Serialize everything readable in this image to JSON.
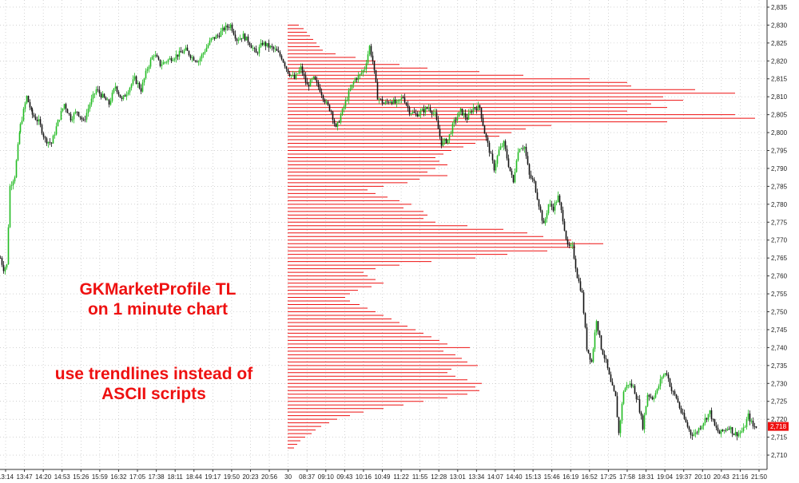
{
  "annotations": {
    "line1": "GKMarketProfile TL",
    "line2": "on 1 minute chart",
    "line3": "use trendlines instead of",
    "line4": "ASCII scripts"
  },
  "colors": {
    "profile": "#ee1111",
    "up_candle": "#22bb22",
    "down_candle": "#111111",
    "grid": "#b8b8b8",
    "price_badge": "#ee1111"
  },
  "chart_data": {
    "type": "candlestick",
    "last_price": 2718,
    "last_price_label": "2,718",
    "ylim": [
      2706,
      2837
    ],
    "y_ticks": [
      "2,710",
      "2,715",
      "2,720",
      "2,725",
      "2,730",
      "2,735",
      "2,740",
      "2,745",
      "2,750",
      "2,755",
      "2,760",
      "2,765",
      "2,770",
      "2,775",
      "2,780",
      "2,785",
      "2,790",
      "2,795",
      "2,800",
      "2,805",
      "2,810",
      "2,815",
      "2,820",
      "2,825",
      "2,830",
      "2,835"
    ],
    "x_ticks": [
      "13:14",
      "13:47",
      "14:20",
      "14:53",
      "15:26",
      "15:59",
      "16:32",
      "17:05",
      "17:38",
      "18:11",
      "18:44",
      "19:17",
      "19:50",
      "20:23",
      "20:56",
      "30",
      "08:37",
      "09:10",
      "09:43",
      "10:16",
      "10:49",
      "11:22",
      "11:55",
      "12:28",
      "13:01",
      "13:34",
      "14:07",
      "14:40",
      "15:13",
      "15:46",
      "16:19",
      "16:52",
      "17:25",
      "17:58",
      "18:31",
      "19:04",
      "19:37",
      "20:10",
      "20:43",
      "21:16",
      "21:50"
    ],
    "price_path": [
      [
        0,
        2765
      ],
      [
        4,
        2762
      ],
      [
        8,
        2763
      ],
      [
        12,
        2785
      ],
      [
        18,
        2788
      ],
      [
        25,
        2802
      ],
      [
        33,
        2810
      ],
      [
        40,
        2805
      ],
      [
        48,
        2803
      ],
      [
        56,
        2798
      ],
      [
        64,
        2797
      ],
      [
        72,
        2803
      ],
      [
        80,
        2808
      ],
      [
        88,
        2804
      ],
      [
        96,
        2806
      ],
      [
        104,
        2803
      ],
      [
        112,
        2808
      ],
      [
        120,
        2812
      ],
      [
        128,
        2810
      ],
      [
        136,
        2808
      ],
      [
        144,
        2813
      ],
      [
        152,
        2809
      ],
      [
        160,
        2812
      ],
      [
        168,
        2815
      ],
      [
        176,
        2812
      ],
      [
        184,
        2818
      ],
      [
        192,
        2822
      ],
      [
        200,
        2819
      ],
      [
        208,
        2820
      ],
      [
        216,
        2821
      ],
      [
        224,
        2822
      ],
      [
        232,
        2823
      ],
      [
        240,
        2821
      ],
      [
        248,
        2820
      ],
      [
        256,
        2823
      ],
      [
        264,
        2826
      ],
      [
        272,
        2827
      ],
      [
        280,
        2829
      ],
      [
        288,
        2830
      ],
      [
        296,
        2826
      ],
      [
        304,
        2827
      ],
      [
        312,
        2825
      ],
      [
        320,
        2822
      ],
      [
        328,
        2825
      ],
      [
        336,
        2824
      ],
      [
        344,
        2823
      ],
      [
        352,
        2821
      ],
      [
        360,
        2817
      ],
      [
        368,
        2815
      ],
      [
        376,
        2818
      ],
      [
        384,
        2813
      ],
      [
        392,
        2815
      ],
      [
        400,
        2812
      ],
      [
        408,
        2808
      ],
      [
        414,
        2806
      ],
      [
        420,
        2801
      ],
      [
        428,
        2806
      ],
      [
        436,
        2811
      ],
      [
        444,
        2815
      ],
      [
        450,
        2816
      ],
      [
        456,
        2818
      ],
      [
        462,
        2824
      ],
      [
        466,
        2820
      ],
      [
        472,
        2810
      ],
      [
        480,
        2808
      ],
      [
        488,
        2809
      ],
      [
        496,
        2808
      ],
      [
        504,
        2810
      ],
      [
        512,
        2806
      ],
      [
        520,
        2805
      ],
      [
        528,
        2806
      ],
      [
        536,
        2807
      ],
      [
        544,
        2805
      ],
      [
        552,
        2797
      ],
      [
        560,
        2798
      ],
      [
        568,
        2803
      ],
      [
        576,
        2806
      ],
      [
        584,
        2804
      ],
      [
        592,
        2807
      ],
      [
        600,
        2807
      ],
      [
        606,
        2800
      ],
      [
        612,
        2795
      ],
      [
        618,
        2790
      ],
      [
        624,
        2795
      ],
      [
        630,
        2797
      ],
      [
        636,
        2791
      ],
      [
        642,
        2786
      ],
      [
        646,
        2793
      ],
      [
        650,
        2796
      ],
      [
        656,
        2796
      ],
      [
        662,
        2788
      ],
      [
        668,
        2786
      ],
      [
        674,
        2780
      ],
      [
        680,
        2774
      ],
      [
        686,
        2780
      ],
      [
        692,
        2779
      ],
      [
        698,
        2782
      ],
      [
        704,
        2776
      ],
      [
        710,
        2768
      ],
      [
        716,
        2768
      ],
      [
        722,
        2760
      ],
      [
        728,
        2755
      ],
      [
        734,
        2740
      ],
      [
        740,
        2736
      ],
      [
        746,
        2748
      ],
      [
        752,
        2740
      ],
      [
        758,
        2736
      ],
      [
        764,
        2730
      ],
      [
        770,
        2726
      ],
      [
        774,
        2716
      ],
      [
        780,
        2728
      ],
      [
        786,
        2730
      ],
      [
        792,
        2729
      ],
      [
        798,
        2725
      ],
      [
        804,
        2718
      ],
      [
        810,
        2727
      ],
      [
        816,
        2726
      ],
      [
        822,
        2728
      ],
      [
        828,
        2732
      ],
      [
        834,
        2733
      ],
      [
        840,
        2728
      ],
      [
        846,
        2726
      ],
      [
        852,
        2722
      ],
      [
        858,
        2719
      ],
      [
        864,
        2716
      ],
      [
        870,
        2716
      ],
      [
        876,
        2718
      ],
      [
        882,
        2720
      ],
      [
        888,
        2722
      ],
      [
        894,
        2718
      ],
      [
        900,
        2716
      ],
      [
        906,
        2717
      ],
      [
        912,
        2718
      ],
      [
        918,
        2716
      ],
      [
        924,
        2716
      ],
      [
        930,
        2717
      ],
      [
        936,
        2721
      ],
      [
        942,
        2718
      ],
      [
        948,
        2718
      ]
    ],
    "profile_x_start": 360,
    "profile_rows": [
      {
        "price": 2830,
        "length": 14
      },
      {
        "price": 2829,
        "length": 20
      },
      {
        "price": 2828,
        "length": 24
      },
      {
        "price": 2827,
        "length": 28
      },
      {
        "price": 2826,
        "length": 32
      },
      {
        "price": 2825,
        "length": 36
      },
      {
        "price": 2824,
        "length": 40
      },
      {
        "price": 2823,
        "length": 44
      },
      {
        "price": 2822,
        "length": 60
      },
      {
        "price": 2821,
        "length": 85
      },
      {
        "price": 2820,
        "length": 110
      },
      {
        "price": 2819,
        "length": 140
      },
      {
        "price": 2818,
        "length": 175
      },
      {
        "price": 2817,
        "length": 240
      },
      {
        "price": 2816,
        "length": 295
      },
      {
        "price": 2815,
        "length": 378
      },
      {
        "price": 2814,
        "length": 425
      },
      {
        "price": 2813,
        "length": 430
      },
      {
        "price": 2812,
        "length": 510
      },
      {
        "price": 2811,
        "length": 560
      },
      {
        "price": 2810,
        "length": 470
      },
      {
        "price": 2809,
        "length": 495
      },
      {
        "price": 2808,
        "length": 455
      },
      {
        "price": 2807,
        "length": 475
      },
      {
        "price": 2806,
        "length": 425
      },
      {
        "price": 2805,
        "length": 560
      },
      {
        "price": 2804,
        "length": 585
      },
      {
        "price": 2803,
        "length": 475
      },
      {
        "price": 2802,
        "length": 330
      },
      {
        "price": 2801,
        "length": 298
      },
      {
        "price": 2800,
        "length": 280
      },
      {
        "price": 2799,
        "length": 265
      },
      {
        "price": 2798,
        "length": 250
      },
      {
        "price": 2797,
        "length": 235
      },
      {
        "price": 2796,
        "length": 220
      },
      {
        "price": 2795,
        "length": 205
      },
      {
        "price": 2794,
        "length": 195
      },
      {
        "price": 2793,
        "length": 185
      },
      {
        "price": 2792,
        "length": 190
      },
      {
        "price": 2791,
        "length": 200
      },
      {
        "price": 2790,
        "length": 185
      },
      {
        "price": 2789,
        "length": 175
      },
      {
        "price": 2788,
        "length": 200
      },
      {
        "price": 2787,
        "length": 165
      },
      {
        "price": 2786,
        "length": 150
      },
      {
        "price": 2785,
        "length": 120
      },
      {
        "price": 2784,
        "length": 100
      },
      {
        "price": 2783,
        "length": 110
      },
      {
        "price": 2782,
        "length": 125
      },
      {
        "price": 2781,
        "length": 140
      },
      {
        "price": 2780,
        "length": 155
      },
      {
        "price": 2779,
        "length": 145
      },
      {
        "price": 2778,
        "length": 170
      },
      {
        "price": 2777,
        "length": 175
      },
      {
        "price": 2776,
        "length": 170
      },
      {
        "price": 2775,
        "length": 185
      },
      {
        "price": 2774,
        "length": 225
      },
      {
        "price": 2773,
        "length": 270
      },
      {
        "price": 2772,
        "length": 300
      },
      {
        "price": 2771,
        "length": 320
      },
      {
        "price": 2770,
        "length": 355
      },
      {
        "price": 2769,
        "length": 395
      },
      {
        "price": 2768,
        "length": 360
      },
      {
        "price": 2767,
        "length": 325
      },
      {
        "price": 2766,
        "length": 275
      },
      {
        "price": 2765,
        "length": 235
      },
      {
        "price": 2764,
        "length": 180
      },
      {
        "price": 2763,
        "length": 140
      },
      {
        "price": 2762,
        "length": 110
      },
      {
        "price": 2761,
        "length": 95
      },
      {
        "price": 2760,
        "length": 100
      },
      {
        "price": 2759,
        "length": 110
      },
      {
        "price": 2758,
        "length": 120
      },
      {
        "price": 2757,
        "length": 105
      },
      {
        "price": 2756,
        "length": 88
      },
      {
        "price": 2755,
        "length": 78
      },
      {
        "price": 2754,
        "length": 72
      },
      {
        "price": 2753,
        "length": 78
      },
      {
        "price": 2752,
        "length": 90
      },
      {
        "price": 2751,
        "length": 100
      },
      {
        "price": 2750,
        "length": 110
      },
      {
        "price": 2749,
        "length": 120
      },
      {
        "price": 2748,
        "length": 130
      },
      {
        "price": 2747,
        "length": 140
      },
      {
        "price": 2746,
        "length": 150
      },
      {
        "price": 2745,
        "length": 160
      },
      {
        "price": 2744,
        "length": 170
      },
      {
        "price": 2743,
        "length": 180
      },
      {
        "price": 2742,
        "length": 190
      },
      {
        "price": 2741,
        "length": 200
      },
      {
        "price": 2740,
        "length": 228
      },
      {
        "price": 2739,
        "length": 195
      },
      {
        "price": 2738,
        "length": 210
      },
      {
        "price": 2737,
        "length": 218
      },
      {
        "price": 2736,
        "length": 225
      },
      {
        "price": 2735,
        "length": 238
      },
      {
        "price": 2734,
        "length": 205
      },
      {
        "price": 2733,
        "length": 200
      },
      {
        "price": 2732,
        "length": 210
      },
      {
        "price": 2731,
        "length": 225
      },
      {
        "price": 2730,
        "length": 243
      },
      {
        "price": 2729,
        "length": 235
      },
      {
        "price": 2728,
        "length": 240
      },
      {
        "price": 2727,
        "length": 225
      },
      {
        "price": 2726,
        "length": 200
      },
      {
        "price": 2725,
        "length": 170
      },
      {
        "price": 2724,
        "length": 145
      },
      {
        "price": 2723,
        "length": 120
      },
      {
        "price": 2722,
        "length": 95
      },
      {
        "price": 2721,
        "length": 78
      },
      {
        "price": 2720,
        "length": 62
      },
      {
        "price": 2719,
        "length": 52
      },
      {
        "price": 2718,
        "length": 42
      },
      {
        "price": 2717,
        "length": 35
      },
      {
        "price": 2716,
        "length": 30
      },
      {
        "price": 2715,
        "length": 22
      },
      {
        "price": 2714,
        "length": 16
      },
      {
        "price": 2713,
        "length": 12
      },
      {
        "price": 2712,
        "length": 8
      }
    ]
  }
}
